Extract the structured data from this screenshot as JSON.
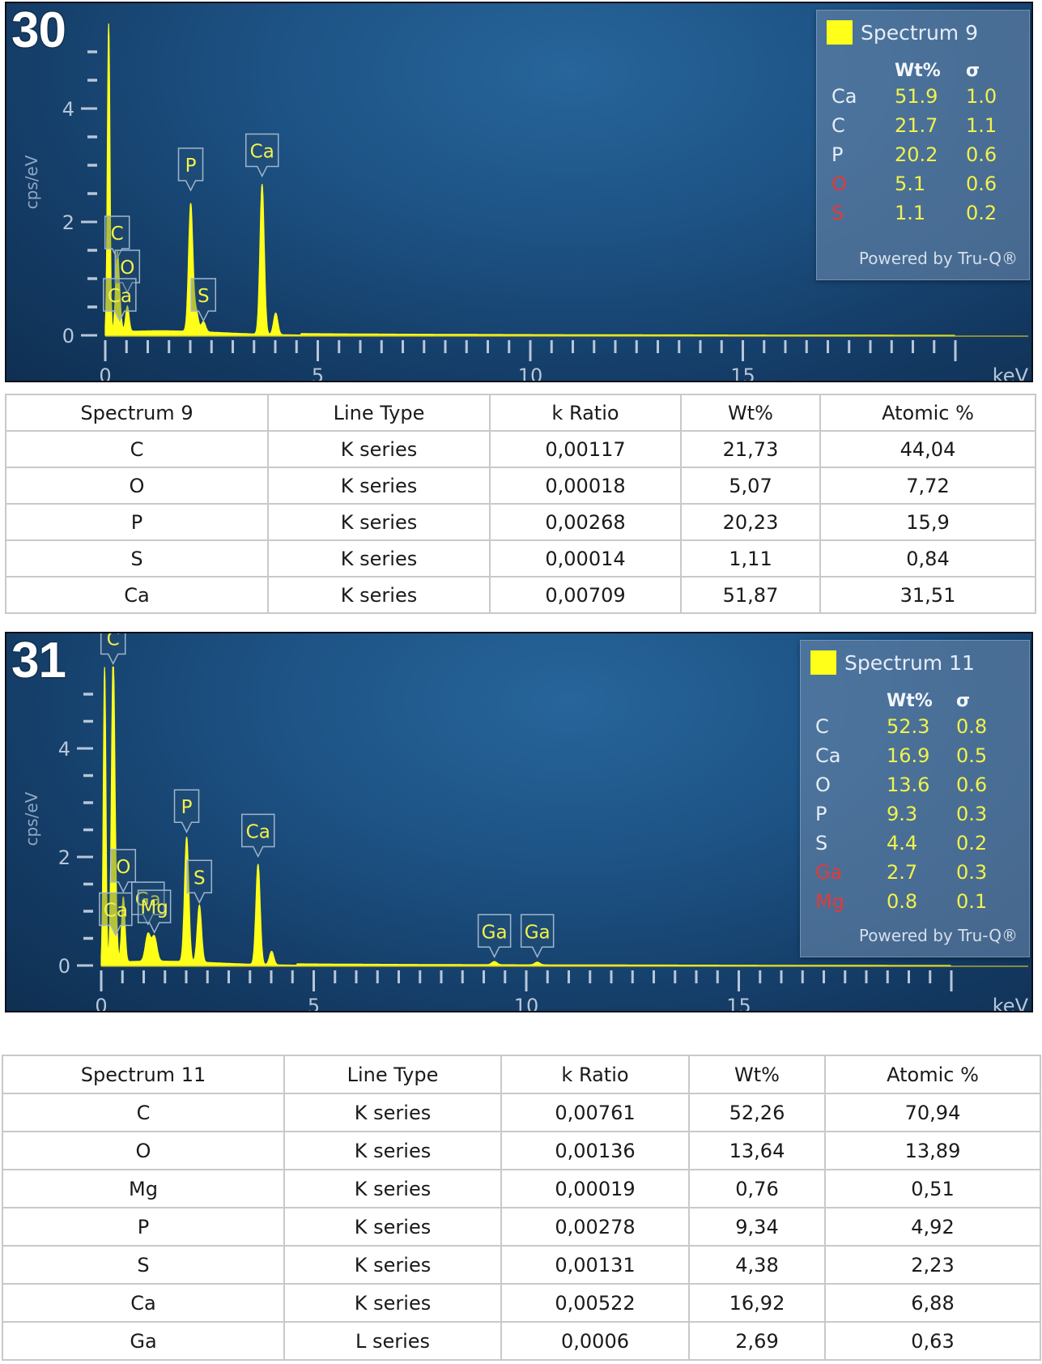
{
  "panels": [
    {
      "figure_number": "30",
      "chart_data": {
        "type": "line",
        "title": "Spectrum 9",
        "xlabel": "keV",
        "ylabel": "cps/eV",
        "xlim": [
          0,
          20
        ],
        "ylim": [
          0,
          5.5
        ],
        "x_ticks": [
          0,
          5,
          10,
          15
        ],
        "y_ticks": [
          0,
          2,
          4
        ],
        "series": [
          {
            "name": "Spectrum 9",
            "color": "#ffff1a",
            "peaks": [
              {
                "x": 0.08,
                "y": 5.5,
                "w": 0.03
              },
              {
                "x": 0.28,
                "y": 1.3,
                "w": 0.04
              },
              {
                "x": 0.34,
                "y": 0.35,
                "w": 0.04
              },
              {
                "x": 0.52,
                "y": 0.45,
                "w": 0.04
              },
              {
                "x": 2.01,
                "y": 2.25,
                "w": 0.05
              },
              {
                "x": 2.14,
                "y": 0.35,
                "w": 0.05
              },
              {
                "x": 2.31,
                "y": 0.18,
                "w": 0.05
              },
              {
                "x": 3.69,
                "y": 2.65,
                "w": 0.05
              },
              {
                "x": 4.01,
                "y": 0.38,
                "w": 0.05
              }
            ]
          }
        ],
        "peak_labels": [
          {
            "label": "C",
            "x": 0.28,
            "y": 1.3
          },
          {
            "label": "O",
            "x": 0.52,
            "y": 0.7
          },
          {
            "label": "Ca",
            "x": 0.34,
            "y": 0.2
          },
          {
            "label": "P",
            "x": 2.01,
            "y": 2.5
          },
          {
            "label": "S",
            "x": 2.31,
            "y": 0.2
          },
          {
            "label": "Ca",
            "x": 3.69,
            "y": 2.75
          }
        ]
      },
      "results_box": {
        "spectrum": "Spectrum 9",
        "wt_header": "Wt%",
        "sigma_header": "σ",
        "rows": [
          {
            "element": "Ca",
            "wt": "51.9",
            "sigma": "1.0",
            "flagged": false
          },
          {
            "element": "C",
            "wt": "21.7",
            "sigma": "1.1",
            "flagged": false
          },
          {
            "element": "P",
            "wt": "20.2",
            "sigma": "0.6",
            "flagged": false
          },
          {
            "element": "O",
            "wt": "5.1",
            "sigma": "0.6",
            "flagged": true
          },
          {
            "element": "S",
            "wt": "1.1",
            "sigma": "0.2",
            "flagged": true
          }
        ],
        "powered_by": "Powered by Tru-Q®",
        "flag_color": "#e23a3a"
      },
      "table": {
        "headers": [
          "Spectrum 9",
          "Line Type",
          "k Ratio",
          "Wt%",
          "Atomic %"
        ],
        "rows": [
          [
            "C",
            "K series",
            "0,00117",
            "21,73",
            "44,04"
          ],
          [
            "O",
            "K series",
            "0,00018",
            "5,07",
            "7,72"
          ],
          [
            "P",
            "K series",
            "0,00268",
            "20,23",
            "15,9"
          ],
          [
            "S",
            "K series",
            "0,00014",
            "1,11",
            "0,84"
          ],
          [
            "Ca",
            "K series",
            "0,00709",
            "51,87",
            "31,51"
          ]
        ]
      }
    },
    {
      "figure_number": "31",
      "chart_data": {
        "type": "line",
        "title": "Spectrum 11",
        "xlabel": "keV",
        "ylabel": "cps/eV",
        "xlim": [
          0,
          20
        ],
        "ylim": [
          0,
          5.5
        ],
        "x_ticks": [
          0,
          5,
          10,
          15
        ],
        "y_ticks": [
          0,
          2,
          4
        ],
        "series": [
          {
            "name": "Spectrum 11",
            "color": "#ffff1a",
            "peaks": [
              {
                "x": 0.08,
                "y": 5.5,
                "w": 0.03
              },
              {
                "x": 0.28,
                "y": 5.5,
                "w": 0.04
              },
              {
                "x": 0.34,
                "y": 0.5,
                "w": 0.04
              },
              {
                "x": 0.52,
                "y": 1.2,
                "w": 0.04
              },
              {
                "x": 1.1,
                "y": 0.5,
                "w": 0.06
              },
              {
                "x": 1.25,
                "y": 0.45,
                "w": 0.06
              },
              {
                "x": 2.01,
                "y": 2.3,
                "w": 0.05
              },
              {
                "x": 2.31,
                "y": 1.05,
                "w": 0.05
              },
              {
                "x": 3.69,
                "y": 1.85,
                "w": 0.05
              },
              {
                "x": 4.01,
                "y": 0.25,
                "w": 0.05
              },
              {
                "x": 9.25,
                "y": 0.06,
                "w": 0.06
              },
              {
                "x": 10.26,
                "y": 0.05,
                "w": 0.06
              }
            ]
          }
        ],
        "peak_labels": [
          {
            "label": "C",
            "x": 0.28,
            "y": 5.5
          },
          {
            "label": "O",
            "x": 0.52,
            "y": 1.3
          },
          {
            "label": "Ga",
            "x": 1.1,
            "y": 0.7
          },
          {
            "label": "Ca",
            "x": 0.34,
            "y": 0.5
          },
          {
            "label": "Mg",
            "x": 1.25,
            "y": 0.55
          },
          {
            "label": "P",
            "x": 2.01,
            "y": 2.4
          },
          {
            "label": "S",
            "x": 2.31,
            "y": 1.1
          },
          {
            "label": "Ca",
            "x": 3.69,
            "y": 1.95
          },
          {
            "label": "Ga",
            "x": 9.25,
            "y": 0.1
          },
          {
            "label": "Ga",
            "x": 10.26,
            "y": 0.1
          }
        ]
      },
      "results_box": {
        "spectrum": "Spectrum 11",
        "wt_header": "Wt%",
        "sigma_header": "σ",
        "rows": [
          {
            "element": "C",
            "wt": "52.3",
            "sigma": "0.8",
            "flagged": false
          },
          {
            "element": "Ca",
            "wt": "16.9",
            "sigma": "0.5",
            "flagged": false
          },
          {
            "element": "O",
            "wt": "13.6",
            "sigma": "0.6",
            "flagged": false
          },
          {
            "element": "P",
            "wt": "9.3",
            "sigma": "0.3",
            "flagged": false
          },
          {
            "element": "S",
            "wt": "4.4",
            "sigma": "0.2",
            "flagged": false
          },
          {
            "element": "Ga",
            "wt": "2.7",
            "sigma": "0.3",
            "flagged": true
          },
          {
            "element": "Mg",
            "wt": "0.8",
            "sigma": "0.1",
            "flagged": true
          }
        ],
        "powered_by": "Powered by Tru-Q®",
        "flag_color": "#e23a3a"
      },
      "table": {
        "headers": [
          "Spectrum 11",
          "Line Type",
          "k Ratio",
          "Wt%",
          "Atomic %"
        ],
        "rows": [
          [
            "C",
            "K series",
            "0,00761",
            "52,26",
            "70,94"
          ],
          [
            "O",
            "K series",
            "0,00136",
            "13,64",
            "13,89"
          ],
          [
            "Mg",
            "K series",
            "0,00019",
            "0,76",
            "0,51"
          ],
          [
            "P",
            "K series",
            "0,00278",
            "9,34",
            "4,92"
          ],
          [
            "S",
            "K series",
            "0,00131",
            "4,38",
            "2,23"
          ],
          [
            "Ca",
            "K series",
            "0,00522",
            "16,92",
            "6,88"
          ],
          [
            "Ga",
            "L series",
            "0,0006",
            "2,69",
            "0,63"
          ]
        ]
      }
    }
  ]
}
